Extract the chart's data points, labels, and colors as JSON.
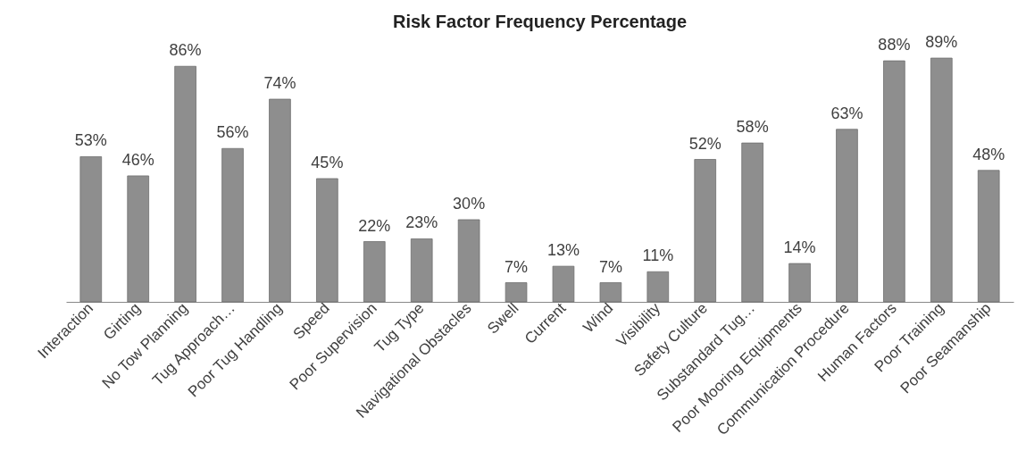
{
  "chart_data": {
    "type": "bar",
    "title": "Risk Factor  Frequency Percentage",
    "categories": [
      "Interaction",
      "Girting",
      "No Tow Planning",
      "Tug Approach…",
      "Poor Tug Handling",
      "Speed",
      "Poor Supervision",
      "Tug Type",
      "Navigational Obstacles",
      "Swell",
      "Current",
      "Wind",
      "Visibility",
      "Safety Culture",
      "Substandard Tug…",
      "Poor Mooring Equipments",
      "Communication Procedure",
      "Human Factors",
      "Poor Training",
      "Poor Seamanship"
    ],
    "values": [
      53,
      46,
      86,
      56,
      74,
      45,
      22,
      23,
      30,
      7,
      13,
      7,
      11,
      52,
      58,
      14,
      63,
      88,
      89,
      48
    ],
    "value_labels": [
      "53%",
      "46%",
      "86%",
      "56%",
      "74%",
      "45%",
      "22%",
      "23%",
      "30%",
      "7%",
      "13%",
      "7%",
      "11%",
      "52%",
      "58%",
      "14%",
      "63%",
      "88%",
      "89%",
      "48%"
    ],
    "color": "#8e8e8e"
  }
}
